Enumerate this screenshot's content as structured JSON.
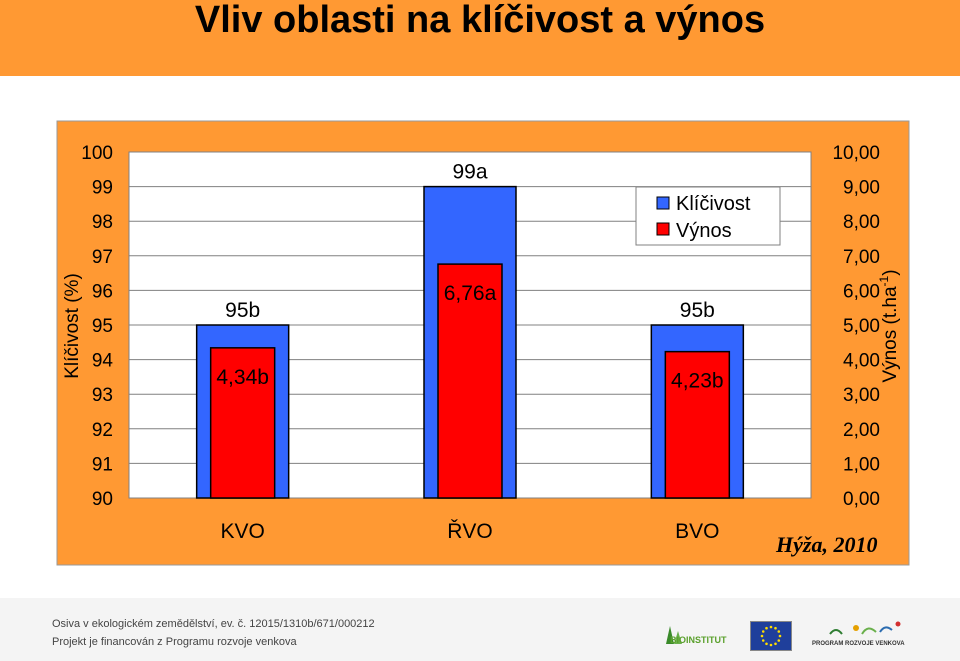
{
  "slide_title": "Vliv oblasti na klíčivost a výnos",
  "chart_data": {
    "type": "bar",
    "categories": [
      "KVO",
      "ŘVO",
      "BVO"
    ],
    "series": [
      {
        "name": "Klíčivost",
        "values": [
          95,
          99,
          95
        ],
        "labels": [
          "95b",
          "99a",
          "95b"
        ],
        "color": "#3366ff",
        "axis": "left"
      },
      {
        "name": "Výnos",
        "values": [
          4.34,
          6.76,
          4.23
        ],
        "labels": [
          "4,34b",
          "6,76a",
          "4,23b"
        ],
        "color": "#ff0000",
        "axis": "right"
      }
    ],
    "left_axis": {
      "label": "Klíčivost (%)",
      "ylim": [
        90,
        100
      ],
      "ticks": [
        "90",
        "91",
        "92",
        "93",
        "94",
        "95",
        "96",
        "97",
        "98",
        "99",
        "100"
      ]
    },
    "right_axis": {
      "label_main": "Výnos (t.ha",
      "label_sup": "-1",
      "label_end": ")",
      "ylim": [
        0,
        10
      ],
      "ticks": [
        "0,00",
        "1,00",
        "2,00",
        "3,00",
        "4,00",
        "5,00",
        "6,00",
        "7,00",
        "8,00",
        "9,00",
        "10,00"
      ]
    },
    "legend_position": "top-right",
    "annotation": "Hýža, 2010",
    "grid": true
  },
  "colors": {
    "title_bar": "#ff9933",
    "chart_background": "#ff9933",
    "plot_background": "#ffffff",
    "bar_border": "#000000"
  },
  "footer": {
    "line1": "Osiva v ekologickém zemědělství, ev. č. 12015/1310b/671/000212",
    "line2": "Projekt je financován z Programu rozvoje venkova",
    "logos": [
      "bioinstitut-logo",
      "eu-flag-logo",
      "program-rozvoje-venkova-logo"
    ],
    "logo_text_bio": "BIOINSTITUT",
    "logo_text_prv": "PROGRAM ROZVOJE VENKOVA"
  }
}
